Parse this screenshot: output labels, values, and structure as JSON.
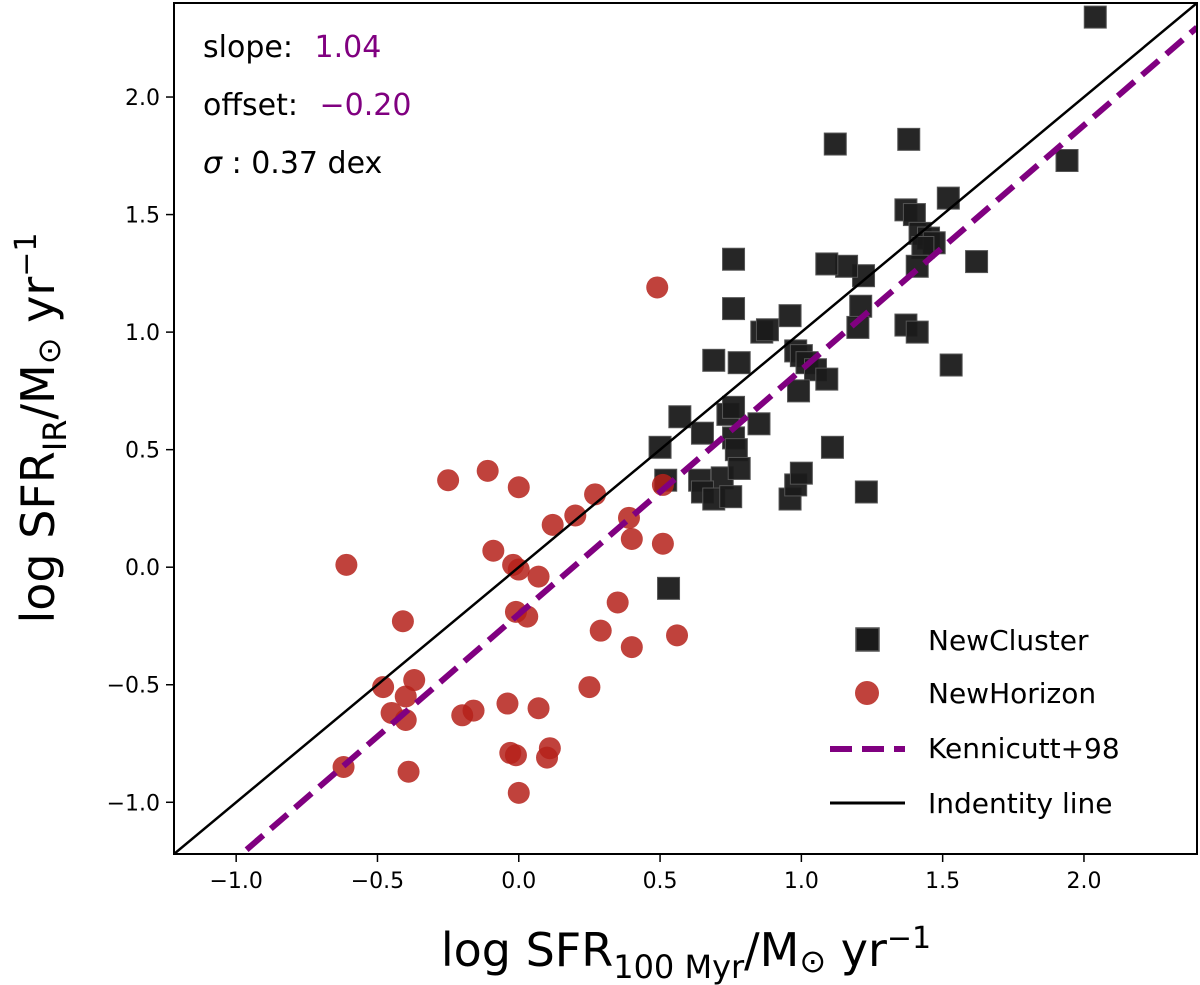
{
  "chart_data": {
    "type": "scatter",
    "xlabel": {
      "main": "log SFR",
      "sub": "100 Myr",
      "rest": "/M",
      "sun": "⊙",
      "unit": " yr",
      "exp": "−1"
    },
    "ylabel": {
      "main": "log SFR",
      "sub": "IR",
      "rest": "/M",
      "sun": "⊙",
      "unit": " yr",
      "exp": "−1"
    },
    "xlim": [
      -1.22,
      2.4
    ],
    "ylim": [
      -1.22,
      2.4
    ],
    "x_ticks": [
      -1.0,
      -0.5,
      0.0,
      0.5,
      1.0,
      1.5,
      2.0
    ],
    "y_ticks": [
      -1.0,
      -0.5,
      0.0,
      0.5,
      1.0,
      1.5,
      2.0
    ],
    "x_tick_labels": [
      "−1.0",
      "−0.5",
      "0.0",
      "0.5",
      "1.0",
      "1.5",
      "2.0"
    ],
    "y_tick_labels": [
      "−1.0",
      "−0.5",
      "0.0",
      "0.5",
      "1.0",
      "1.5",
      "2.0"
    ],
    "grid": false,
    "legend_position": "bottom-right",
    "stats": {
      "slope_label": "slope:",
      "slope_value": "1.04",
      "offset_label": "offset:",
      "offset_value": "−0.20",
      "sigma_symbol": "σ",
      "sigma_text": ": 0.37 dex",
      "value_color": "#800080"
    },
    "series": [
      {
        "name": "NewCluster",
        "marker": "square",
        "color": "#1a1a1a",
        "points": [
          [
            2.04,
            2.34
          ],
          [
            1.94,
            1.73
          ],
          [
            1.38,
            1.82
          ],
          [
            1.12,
            1.8
          ],
          [
            1.52,
            1.57
          ],
          [
            1.37,
            1.52
          ],
          [
            1.4,
            1.5
          ],
          [
            1.42,
            1.42
          ],
          [
            1.45,
            1.4
          ],
          [
            1.47,
            1.38
          ],
          [
            1.43,
            1.36
          ],
          [
            1.41,
            1.28
          ],
          [
            1.62,
            1.3
          ],
          [
            1.22,
            1.24
          ],
          [
            1.16,
            1.28
          ],
          [
            1.09,
            1.29
          ],
          [
            1.21,
            1.11
          ],
          [
            1.2,
            1.02
          ],
          [
            1.37,
            1.03
          ],
          [
            1.41,
            1.0
          ],
          [
            1.53,
            0.86
          ],
          [
            0.76,
            1.31
          ],
          [
            0.76,
            1.1
          ],
          [
            0.86,
            1.0
          ],
          [
            0.88,
            1.01
          ],
          [
            0.96,
            1.07
          ],
          [
            0.98,
            0.92
          ],
          [
            1.0,
            0.9
          ],
          [
            1.02,
            0.87
          ],
          [
            1.05,
            0.84
          ],
          [
            1.09,
            0.8
          ],
          [
            0.99,
            0.75
          ],
          [
            0.78,
            0.87
          ],
          [
            0.69,
            0.88
          ],
          [
            0.74,
            0.65
          ],
          [
            0.76,
            0.68
          ],
          [
            0.57,
            0.64
          ],
          [
            0.85,
            0.61
          ],
          [
            0.65,
            0.57
          ],
          [
            0.76,
            0.55
          ],
          [
            0.77,
            0.5
          ],
          [
            1.11,
            0.51
          ],
          [
            0.5,
            0.51
          ],
          [
            0.52,
            0.37
          ],
          [
            0.64,
            0.37
          ],
          [
            0.72,
            0.38
          ],
          [
            0.78,
            0.42
          ],
          [
            0.65,
            0.32
          ],
          [
            0.69,
            0.29
          ],
          [
            0.75,
            0.3
          ],
          [
            0.96,
            0.29
          ],
          [
            0.98,
            0.35
          ],
          [
            1.0,
            0.4
          ],
          [
            1.23,
            0.32
          ],
          [
            0.53,
            -0.09
          ]
        ]
      },
      {
        "name": "NewHorizon",
        "marker": "circle",
        "color": "#b5211a",
        "points": [
          [
            0.49,
            1.19
          ],
          [
            -0.11,
            0.41
          ],
          [
            -0.25,
            0.37
          ],
          [
            0.0,
            0.34
          ],
          [
            0.27,
            0.31
          ],
          [
            0.51,
            0.35
          ],
          [
            0.2,
            0.22
          ],
          [
            0.39,
            0.21
          ],
          [
            0.12,
            0.18
          ],
          [
            0.4,
            0.12
          ],
          [
            0.51,
            0.1
          ],
          [
            -0.09,
            0.07
          ],
          [
            -0.61,
            0.01
          ],
          [
            -0.02,
            0.01
          ],
          [
            0.0,
            -0.01
          ],
          [
            0.07,
            -0.04
          ],
          [
            0.35,
            -0.15
          ],
          [
            -0.01,
            -0.19
          ],
          [
            0.03,
            -0.21
          ],
          [
            0.29,
            -0.27
          ],
          [
            0.56,
            -0.29
          ],
          [
            -0.41,
            -0.23
          ],
          [
            0.4,
            -0.34
          ],
          [
            -0.37,
            -0.48
          ],
          [
            -0.48,
            -0.51
          ],
          [
            -0.4,
            -0.55
          ],
          [
            0.25,
            -0.51
          ],
          [
            -0.45,
            -0.62
          ],
          [
            -0.04,
            -0.58
          ],
          [
            0.07,
            -0.6
          ],
          [
            -0.2,
            -0.63
          ],
          [
            -0.16,
            -0.61
          ],
          [
            -0.4,
            -0.65
          ],
          [
            0.11,
            -0.77
          ],
          [
            -0.03,
            -0.79
          ],
          [
            -0.01,
            -0.8
          ],
          [
            0.1,
            -0.81
          ],
          [
            -0.62,
            -0.85
          ],
          [
            -0.39,
            -0.87
          ],
          [
            0.0,
            -0.96
          ]
        ]
      },
      {
        "name": "Kennicutt+98",
        "marker": "dashed-line",
        "color": "#800080",
        "line": {
          "slope": 1.04,
          "intercept": -0.2
        }
      },
      {
        "name": "Indentity line",
        "marker": "solid-line",
        "color": "#000000",
        "line": {
          "slope": 1.0,
          "intercept": 0.0
        }
      }
    ]
  }
}
